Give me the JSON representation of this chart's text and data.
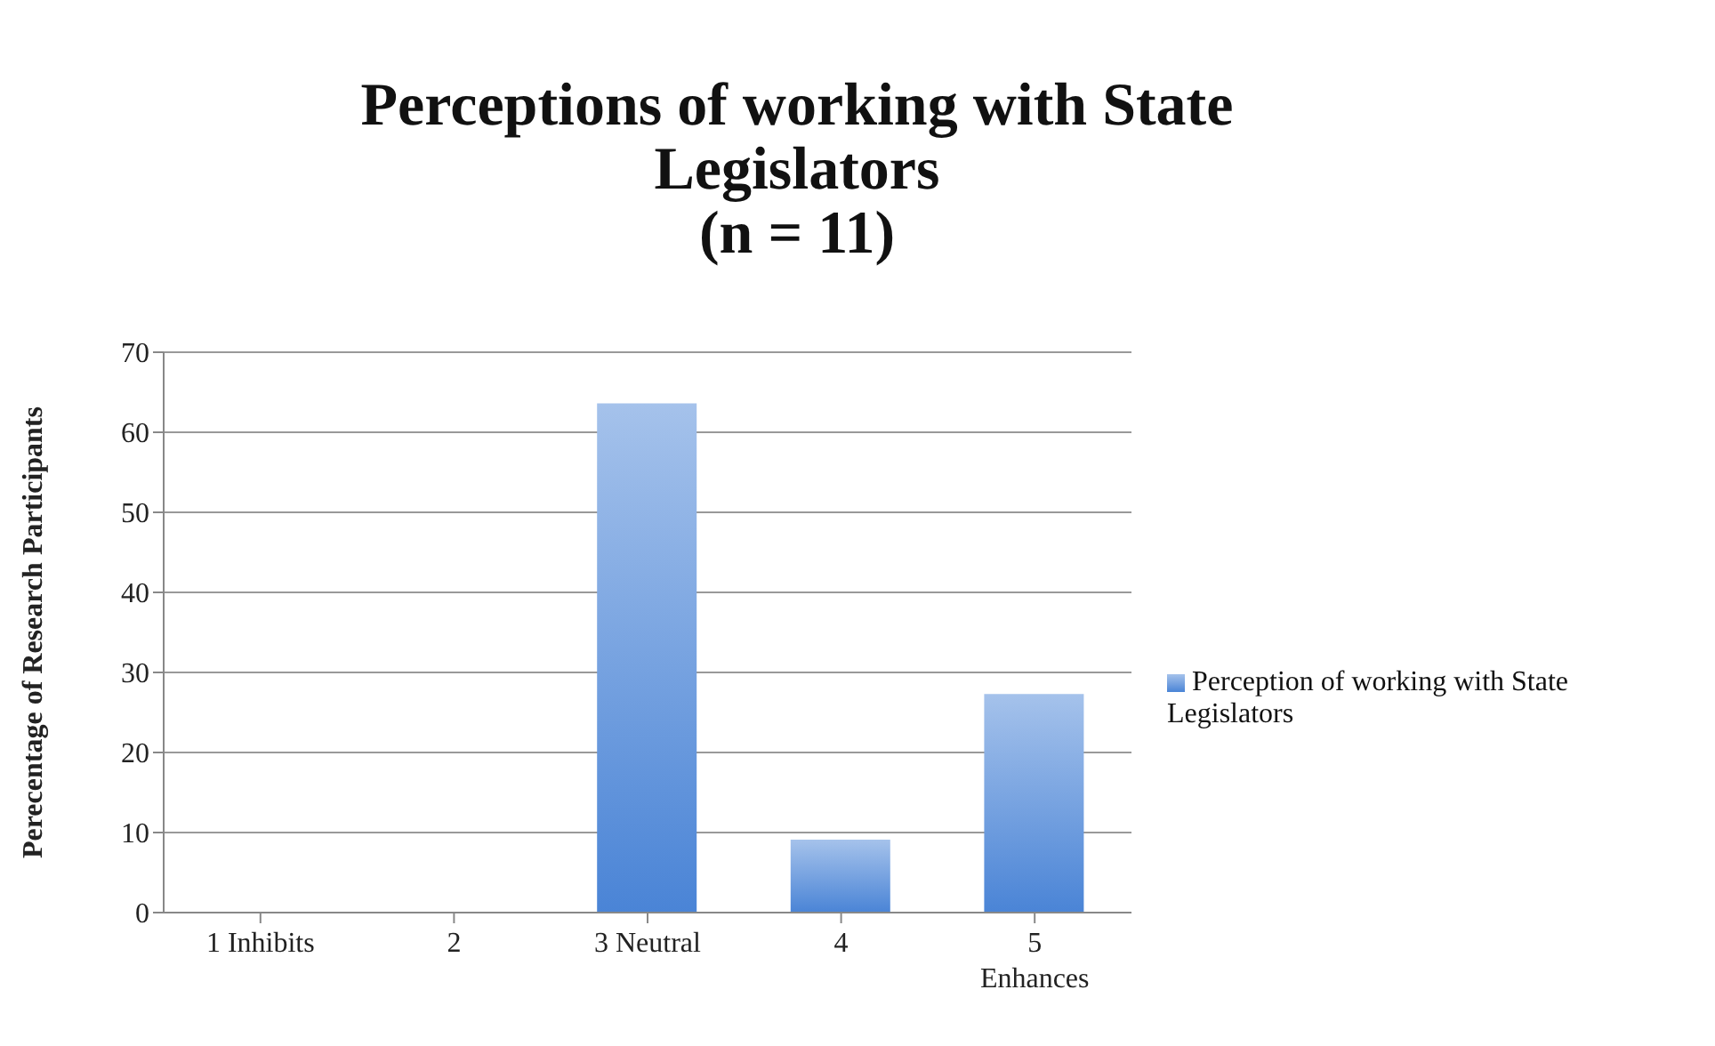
{
  "chart_data": {
    "type": "bar",
    "title": "Perceptions of working with State\nLegislators\n(n = 11)",
    "ylabel": "Perecentage of Research Participants",
    "categories": [
      "1 Inhibits",
      "2",
      "3 Neutral",
      "4",
      "5\nEnhances"
    ],
    "series": [
      {
        "name": "Perception of working with State Legislators",
        "color": "#4a84d6",
        "values": [
          0,
          0,
          63.6,
          9.1,
          27.3
        ]
      }
    ],
    "ylim": [
      0,
      70
    ],
    "yticks": [
      0,
      10,
      20,
      30,
      40,
      50,
      60,
      70
    ],
    "grid": "y",
    "legend": "right"
  }
}
